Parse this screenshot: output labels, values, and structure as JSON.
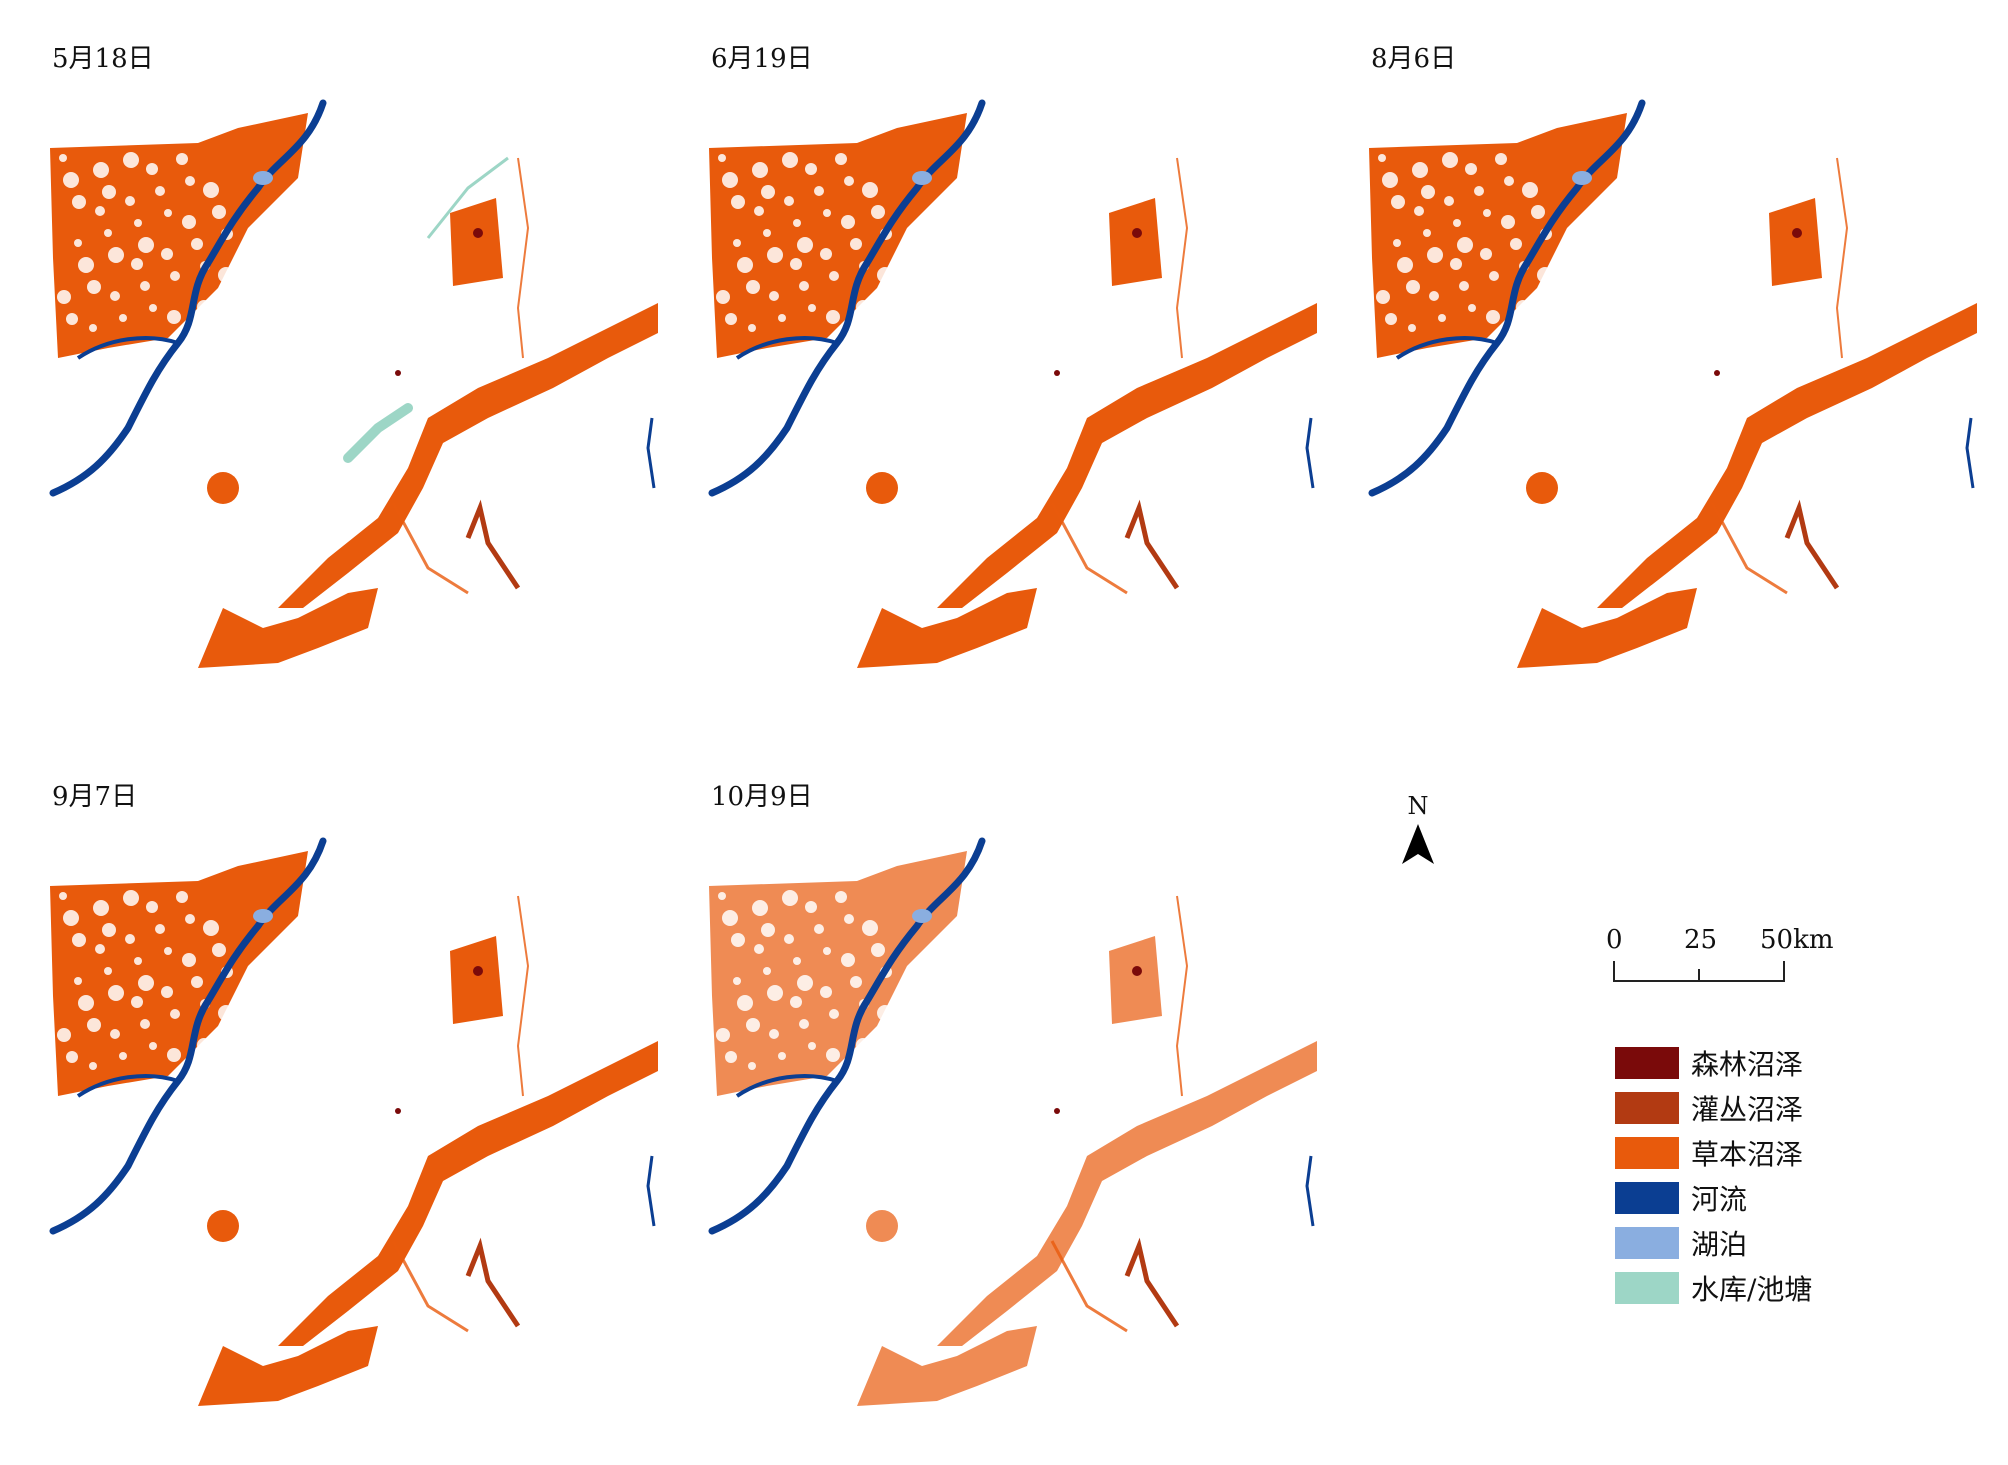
{
  "panels": [
    {
      "title": "5月18日"
    },
    {
      "title": "6月19日"
    },
    {
      "title": "8月6日"
    },
    {
      "title": "9月7日"
    },
    {
      "title": "10月9日"
    }
  ],
  "north_arrow": {
    "label": "N"
  },
  "scale_bar": {
    "labels": [
      "0",
      "25",
      "50km"
    ]
  },
  "legend": [
    {
      "label": "森林沼泽",
      "color": "#7a0a0a"
    },
    {
      "label": "灌丛沼泽",
      "color": "#b23a12"
    },
    {
      "label": "草本沼泽",
      "color": "#e85a0c"
    },
    {
      "label": "河流",
      "color": "#0b3e92"
    },
    {
      "label": "湖泊",
      "color": "#8aaee0"
    },
    {
      "label": "水库/池塘",
      "color": "#9dd6c6"
    }
  ]
}
